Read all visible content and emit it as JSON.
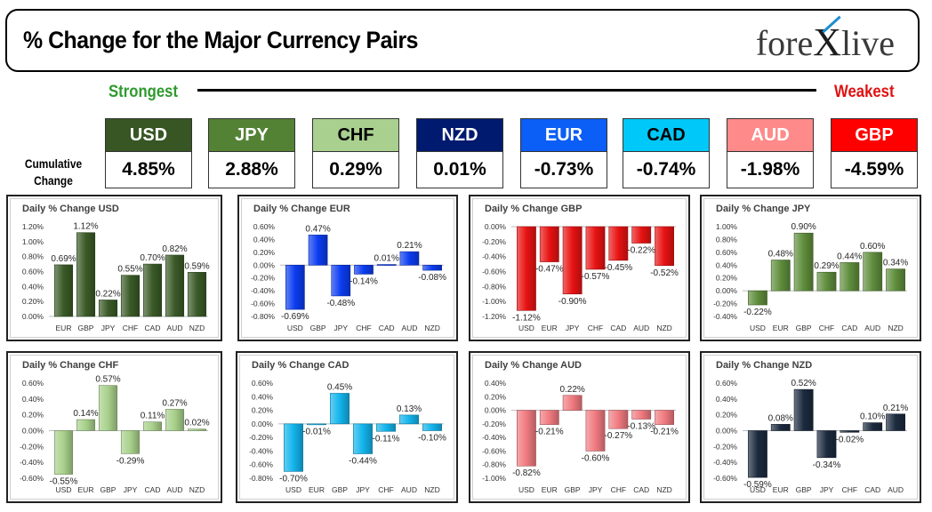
{
  "header": {
    "title": "% Change for the Major Currency Pairs",
    "logo_text": {
      "left": "fore",
      "x": "X",
      "right": "live"
    }
  },
  "strength": {
    "strongest_label": "Strongest",
    "weakest_label": "Weakest"
  },
  "cumulative": {
    "label_line1": "Cumulative",
    "label_line2": "Change",
    "items": [
      {
        "currency": "USD",
        "value": "4.85%",
        "bg": "#375623",
        "fg": "#ffffff"
      },
      {
        "currency": "JPY",
        "value": "2.88%",
        "bg": "#548235",
        "fg": "#ffffff"
      },
      {
        "currency": "CHF",
        "value": "0.29%",
        "bg": "#a9d08e",
        "fg": "#000000"
      },
      {
        "currency": "NZD",
        "value": "0.01%",
        "bg": "#001a70",
        "fg": "#ffffff"
      },
      {
        "currency": "EUR",
        "value": "-0.73%",
        "bg": "#0b5ef6",
        "fg": "#ffffff"
      },
      {
        "currency": "CAD",
        "value": "-0.74%",
        "bg": "#00c8f8",
        "fg": "#000000"
      },
      {
        "currency": "AUD",
        "value": "-1.98%",
        "bg": "#ff8a8a",
        "fg": "#ffffff"
      },
      {
        "currency": "GBP",
        "value": "-4.59%",
        "bg": "#ff0000",
        "fg": "#ffffff"
      }
    ]
  },
  "chart_data": [
    {
      "type": "bar",
      "title": "Daily % Change USD",
      "color": "#3a5a27",
      "ylim": [
        0,
        1.2
      ],
      "yticks": [
        "0.00%",
        "0.20%",
        "0.40%",
        "0.60%",
        "0.80%",
        "1.00%",
        "1.20%"
      ],
      "categories": [
        "EUR",
        "GBP",
        "JPY",
        "CHF",
        "CAD",
        "AUD",
        "NZD"
      ],
      "values": [
        0.69,
        1.12,
        0.22,
        0.55,
        0.7,
        0.82,
        0.59
      ],
      "labels": [
        "0.69%",
        "1.12%",
        "0.22%",
        "0.55%",
        "0.70%",
        "0.82%",
        "0.59%"
      ]
    },
    {
      "type": "bar",
      "title": "Daily % Change EUR",
      "color": "#0b3cf0",
      "ylim": [
        -0.8,
        0.6
      ],
      "yticks": [
        "-0.80%",
        "-0.60%",
        "-0.40%",
        "-0.20%",
        "0.00%",
        "0.20%",
        "0.40%",
        "0.60%"
      ],
      "categories": [
        "USD",
        "GBP",
        "JPY",
        "CHF",
        "CAD",
        "AUD",
        "NZD"
      ],
      "values": [
        -0.69,
        0.47,
        -0.48,
        -0.14,
        0.01,
        0.21,
        -0.08
      ],
      "labels": [
        "-0.69%",
        "0.47%",
        "-0.48%",
        "-0.14%",
        "0.01%",
        "0.21%",
        "-0.08%"
      ]
    },
    {
      "type": "bar",
      "title": "Daily % Change GBP",
      "color": "#e81212",
      "ylim": [
        -1.2,
        0
      ],
      "yticks": [
        "-1.20%",
        "-1.00%",
        "-0.80%",
        "-0.60%",
        "-0.40%",
        "-0.20%",
        "0.00%"
      ],
      "categories": [
        "USD",
        "EUR",
        "JPY",
        "CHF",
        "CAD",
        "AUD",
        "NZD"
      ],
      "values": [
        -1.12,
        -0.47,
        -0.9,
        -0.57,
        -0.45,
        -0.22,
        -0.52
      ],
      "labels": [
        "-1.12%",
        "-0.47%",
        "-0.90%",
        "-0.57%",
        "-0.45%",
        "-0.22%",
        "-0.52%"
      ]
    },
    {
      "type": "bar",
      "title": "Daily % Change JPY",
      "color": "#5f8d3c",
      "ylim": [
        -0.4,
        1.0
      ],
      "yticks": [
        "-0.40%",
        "-0.20%",
        "0.00%",
        "0.20%",
        "0.40%",
        "0.60%",
        "0.80%",
        "1.00%"
      ],
      "categories": [
        "USD",
        "EUR",
        "GBP",
        "CHF",
        "CAD",
        "AUD",
        "NZD"
      ],
      "values": [
        -0.22,
        0.48,
        0.9,
        0.29,
        0.44,
        0.6,
        0.34
      ],
      "labels": [
        "-0.22%",
        "0.48%",
        "0.90%",
        "0.29%",
        "0.44%",
        "0.60%",
        "0.34%"
      ]
    },
    {
      "type": "bar",
      "title": "Daily % Change CHF",
      "color": "#a8d08a",
      "ylim": [
        -0.6,
        0.6
      ],
      "yticks": [
        "-0.60%",
        "-0.40%",
        "-0.20%",
        "0.00%",
        "0.20%",
        "0.40%",
        "0.60%"
      ],
      "categories": [
        "USD",
        "EUR",
        "GBP",
        "JPY",
        "CAD",
        "AUD",
        "NZD"
      ],
      "values": [
        -0.55,
        0.14,
        0.57,
        -0.29,
        0.11,
        0.27,
        0.02
      ],
      "labels": [
        "-0.55%",
        "0.14%",
        "0.57%",
        "-0.29%",
        "0.11%",
        "0.27%",
        "0.02%"
      ]
    },
    {
      "type": "bar",
      "title": "Daily % Change CAD",
      "color": "#12b4ec",
      "ylim": [
        -0.8,
        0.6
      ],
      "yticks": [
        "-0.80%",
        "-0.60%",
        "-0.40%",
        "-0.20%",
        "0.00%",
        "0.20%",
        "0.40%",
        "0.60%"
      ],
      "categories": [
        "USD",
        "EUR",
        "GBP",
        "JPY",
        "CHF",
        "AUD",
        "NZD"
      ],
      "values": [
        -0.7,
        -0.01,
        0.45,
        -0.44,
        -0.11,
        0.13,
        -0.1
      ],
      "labels": [
        "-0.70%",
        "-0.01%",
        "0.45%",
        "-0.44%",
        "-0.11%",
        "0.13%",
        "-0.10%"
      ]
    },
    {
      "type": "bar",
      "title": "Daily % Change AUD",
      "color": "#f07a80",
      "ylim": [
        -1.0,
        0.4
      ],
      "yticks": [
        "-1.00%",
        "-0.80%",
        "-0.60%",
        "-0.40%",
        "-0.20%",
        "0.00%",
        "0.20%",
        "0.40%"
      ],
      "categories": [
        "USD",
        "EUR",
        "GBP",
        "JPY",
        "CHF",
        "CAD",
        "NZD"
      ],
      "values": [
        -0.82,
        -0.21,
        0.22,
        -0.6,
        -0.27,
        -0.13,
        -0.21
      ],
      "labels": [
        "-0.82%",
        "-0.21%",
        "0.22%",
        "-0.60%",
        "-0.27%",
        "-0.13%",
        "-0.21%"
      ]
    },
    {
      "type": "bar",
      "title": "Daily % Change NZD",
      "color": "#1b2a3e",
      "ylim": [
        -0.6,
        0.6
      ],
      "yticks": [
        "-0.60%",
        "-0.40%",
        "-0.20%",
        "0.00%",
        "0.20%",
        "0.40%",
        "0.60%"
      ],
      "categories": [
        "USD",
        "EUR",
        "GBP",
        "JPY",
        "CHF",
        "CAD",
        "AUD"
      ],
      "values": [
        -0.59,
        0.08,
        0.52,
        -0.34,
        -0.02,
        0.1,
        0.21
      ],
      "labels": [
        "-0.59%",
        "0.08%",
        "0.52%",
        "-0.34%",
        "-0.02%",
        "0.10%",
        "0.21%"
      ]
    }
  ]
}
